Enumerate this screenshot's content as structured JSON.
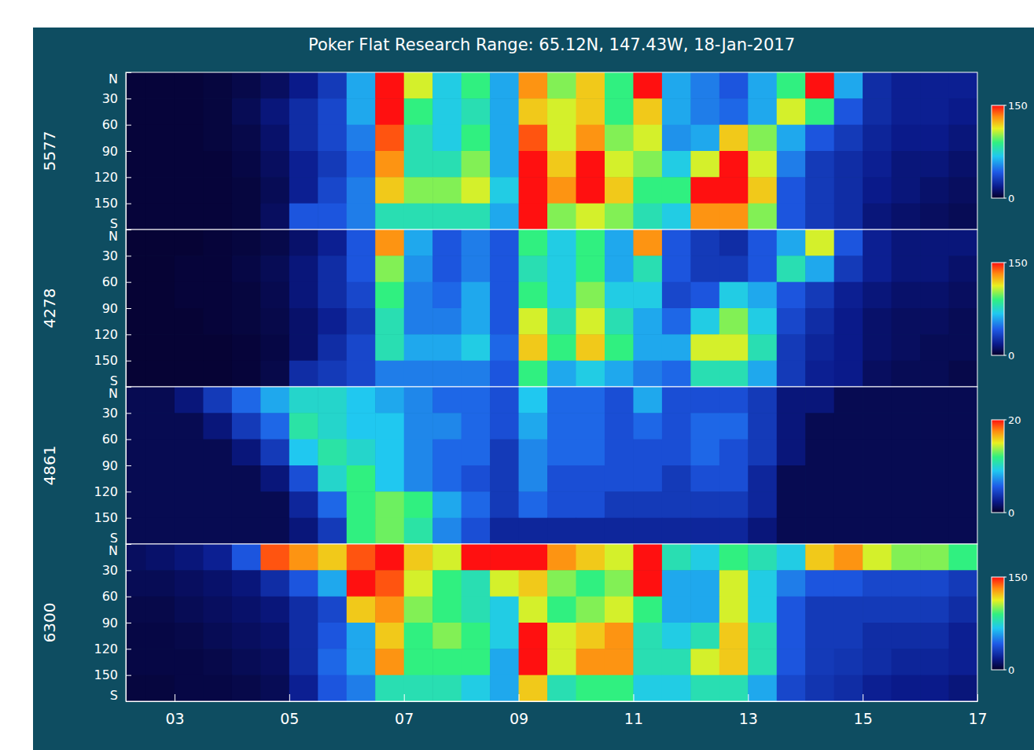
{
  "chart_data": {
    "type": "heatmap",
    "title": "Poker Flat Research Range: 65.12N, 147.43W, 18-Jan-2017",
    "x_bins": [
      2.15,
      2.5,
      3,
      3.5,
      4,
      4.5,
      5,
      5.5,
      6,
      6.5,
      7,
      7.5,
      8,
      8.5,
      9,
      9.5,
      10,
      10.5,
      11,
      11.5,
      12,
      12.5,
      13,
      13.5,
      14,
      14.5,
      15,
      15.5,
      16,
      16.5,
      17
    ],
    "y_bins": [
      0,
      30,
      60,
      90,
      120,
      150,
      180
    ],
    "xlim": [
      2.15,
      17
    ],
    "xticks": [
      {
        "value": 3,
        "label": "03"
      },
      {
        "value": 5,
        "label": "05"
      },
      {
        "value": 7,
        "label": "07"
      },
      {
        "value": 9,
        "label": "09"
      },
      {
        "value": 11,
        "label": "11"
      },
      {
        "value": 13,
        "label": "13"
      },
      {
        "value": 15,
        "label": "15"
      },
      {
        "value": 17,
        "label": "17"
      }
    ],
    "ylim": [
      0,
      180
    ],
    "yticks": [
      {
        "value": 0,
        "label": "N"
      },
      30,
      60,
      90,
      120,
      150,
      {
        "value": 180,
        "label": "S"
      }
    ],
    "panels": [
      {
        "label": "5577",
        "colorbar": {
          "range": [
            0,
            150
          ],
          "ticks": [
            0,
            150
          ]
        },
        "z": [
          [
            3,
            3,
            3,
            4,
            6,
            10,
            18,
            30,
            60,
            150,
            110,
            70,
            90,
            60,
            130,
            100,
            120,
            90,
            150,
            60,
            50,
            40,
            60,
            90,
            150,
            60,
            25,
            20,
            20,
            20
          ],
          [
            3,
            3,
            3,
            4,
            8,
            15,
            25,
            35,
            60,
            150,
            90,
            70,
            80,
            60,
            120,
            110,
            120,
            90,
            120,
            60,
            50,
            45,
            60,
            110,
            90,
            40,
            25,
            20,
            20,
            18
          ],
          [
            3,
            3,
            3,
            4,
            6,
            12,
            25,
            35,
            50,
            140,
            80,
            70,
            90,
            60,
            140,
            110,
            130,
            100,
            110,
            55,
            60,
            120,
            100,
            60,
            40,
            30,
            22,
            18,
            18,
            15
          ],
          [
            3,
            3,
            3,
            3,
            5,
            10,
            20,
            30,
            45,
            130,
            80,
            80,
            100,
            60,
            150,
            120,
            150,
            110,
            100,
            70,
            110,
            150,
            110,
            50,
            30,
            25,
            20,
            15,
            15,
            12
          ],
          [
            3,
            3,
            3,
            3,
            4,
            8,
            20,
            35,
            50,
            120,
            100,
            100,
            110,
            70,
            150,
            130,
            150,
            120,
            90,
            90,
            150,
            150,
            120,
            40,
            30,
            25,
            18,
            15,
            12,
            10
          ],
          [
            3,
            3,
            3,
            3,
            4,
            10,
            40,
            40,
            50,
            80,
            80,
            80,
            80,
            60,
            150,
            100,
            110,
            100,
            80,
            70,
            130,
            130,
            100,
            40,
            30,
            25,
            15,
            12,
            10,
            8
          ]
        ]
      },
      {
        "label": "4278",
        "colorbar": {
          "range": [
            0,
            150
          ],
          "ticks": [
            0,
            150
          ]
        },
        "z": [
          [
            2,
            2,
            2,
            3,
            4,
            6,
            12,
            20,
            40,
            130,
            60,
            40,
            50,
            40,
            90,
            70,
            90,
            60,
            130,
            40,
            30,
            25,
            40,
            60,
            110,
            40,
            20,
            15,
            15,
            15
          ],
          [
            2,
            2,
            3,
            3,
            5,
            8,
            15,
            25,
            40,
            100,
            55,
            40,
            50,
            40,
            80,
            70,
            90,
            60,
            80,
            40,
            30,
            30,
            40,
            80,
            60,
            30,
            20,
            15,
            15,
            12
          ],
          [
            2,
            2,
            3,
            3,
            4,
            7,
            15,
            25,
            35,
            90,
            50,
            45,
            60,
            40,
            90,
            70,
            100,
            70,
            70,
            35,
            40,
            70,
            60,
            40,
            30,
            20,
            15,
            12,
            12,
            10
          ],
          [
            2,
            2,
            2,
            3,
            4,
            6,
            12,
            20,
            30,
            80,
            50,
            50,
            60,
            40,
            110,
            80,
            110,
            80,
            60,
            45,
            70,
            100,
            70,
            35,
            25,
            18,
            12,
            10,
            10,
            8
          ],
          [
            2,
            2,
            2,
            2,
            3,
            5,
            12,
            25,
            35,
            80,
            60,
            60,
            70,
            45,
            120,
            90,
            120,
            90,
            60,
            60,
            110,
            110,
            80,
            30,
            22,
            18,
            12,
            10,
            8,
            8
          ],
          [
            2,
            2,
            2,
            2,
            3,
            6,
            25,
            30,
            35,
            50,
            50,
            50,
            50,
            40,
            90,
            60,
            70,
            60,
            50,
            45,
            80,
            80,
            60,
            30,
            20,
            18,
            10,
            8,
            8,
            6
          ]
        ]
      },
      {
        "label": "4861",
        "colorbar": {
          "range": [
            0,
            20
          ],
          "ticks": [
            0,
            20
          ]
        },
        "z": [
          [
            1,
            1,
            2,
            4,
            6,
            8,
            10,
            10,
            9,
            8,
            7,
            6,
            6,
            5,
            9,
            6,
            6,
            5,
            8,
            5,
            5,
            5,
            4,
            2,
            2,
            1,
            1,
            1,
            1,
            1
          ],
          [
            1,
            1,
            1,
            2,
            4,
            6,
            11,
            10,
            9,
            9,
            7,
            7,
            6,
            5,
            8,
            6,
            6,
            5,
            6,
            5,
            6,
            6,
            4,
            2,
            1,
            1,
            1,
            1,
            1,
            1
          ],
          [
            1,
            1,
            1,
            1,
            2,
            4,
            9,
            11,
            10,
            9,
            7,
            6,
            6,
            4,
            7,
            6,
            6,
            5,
            5,
            5,
            6,
            5,
            4,
            2,
            1,
            1,
            1,
            1,
            1,
            1
          ],
          [
            1,
            1,
            1,
            1,
            1,
            2,
            5,
            10,
            12,
            9,
            7,
            6,
            5,
            4,
            7,
            5,
            5,
            5,
            5,
            4,
            5,
            5,
            3,
            1,
            1,
            1,
            1,
            1,
            1,
            1
          ],
          [
            1,
            1,
            1,
            1,
            1,
            1,
            3,
            6,
            12,
            13,
            12,
            8,
            6,
            4,
            6,
            5,
            5,
            4,
            4,
            4,
            4,
            4,
            3,
            1,
            1,
            1,
            1,
            1,
            1,
            1
          ],
          [
            1,
            1,
            1,
            1,
            1,
            1,
            2,
            4,
            12,
            13,
            11,
            7,
            5,
            3,
            3,
            3,
            3,
            3,
            3,
            3,
            3,
            3,
            2,
            1,
            1,
            1,
            1,
            1,
            1,
            1
          ]
        ]
      },
      {
        "label": "6300",
        "colorbar": {
          "range": [
            0,
            150
          ],
          "ticks": [
            0,
            150
          ]
        },
        "z": [
          [
            10,
            12,
            15,
            20,
            40,
            140,
            130,
            120,
            140,
            150,
            120,
            110,
            150,
            150,
            150,
            130,
            120,
            110,
            150,
            80,
            70,
            90,
            80,
            70,
            120,
            130,
            110,
            100,
            100,
            90
          ],
          [
            8,
            8,
            10,
            12,
            15,
            25,
            40,
            60,
            150,
            140,
            110,
            90,
            80,
            110,
            120,
            100,
            90,
            100,
            150,
            60,
            60,
            110,
            70,
            50,
            40,
            40,
            35,
            35,
            35,
            30
          ],
          [
            6,
            6,
            8,
            10,
            12,
            15,
            25,
            35,
            120,
            130,
            100,
            90,
            80,
            70,
            110,
            90,
            100,
            110,
            90,
            60,
            60,
            110,
            70,
            40,
            30,
            30,
            30,
            30,
            30,
            25
          ],
          [
            5,
            5,
            6,
            8,
            10,
            12,
            25,
            40,
            60,
            120,
            90,
            100,
            90,
            70,
            150,
            110,
            120,
            130,
            80,
            70,
            80,
            120,
            80,
            40,
            30,
            30,
            25,
            25,
            25,
            20
          ],
          [
            5,
            5,
            5,
            6,
            8,
            10,
            25,
            45,
            60,
            130,
            90,
            90,
            90,
            60,
            150,
            110,
            130,
            130,
            80,
            80,
            110,
            120,
            80,
            40,
            30,
            28,
            25,
            22,
            22,
            20
          ],
          [
            4,
            4,
            5,
            5,
            6,
            8,
            20,
            40,
            50,
            80,
            80,
            80,
            70,
            60,
            120,
            80,
            90,
            90,
            70,
            70,
            80,
            80,
            60,
            35,
            28,
            25,
            20,
            18,
            18,
            15
          ]
        ]
      }
    ]
  }
}
